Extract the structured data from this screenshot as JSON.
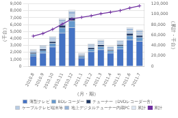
{
  "chart_data": {
    "type": "bar",
    "stacked": true,
    "xlabel": "（月・期）",
    "ylabel": "（千台）",
    "y2label": "（累計・千台）",
    "categories": [
      "2010.8",
      "2010.9",
      "2010.10",
      "2010.11",
      "2010.12",
      "2011.1",
      "2011.2",
      "2011.3",
      "2011.4",
      "2011.5",
      "2011.6",
      "2011.7"
    ],
    "series": [
      {
        "name": "薄型テレビ",
        "color": "#4472C4",
        "values": [
          1500,
          1900,
          2800,
          4800,
          5600,
          1200,
          2100,
          2400,
          1900,
          2500,
          3800,
          3600
        ]
      },
      {
        "name": "BDレコーダー",
        "color": "#6699CC",
        "values": [
          300,
          380,
          500,
          750,
          950,
          220,
          380,
          450,
          330,
          420,
          620,
          580
        ]
      },
      {
        "name": "チューナー（DVDレコーダー含）",
        "color": "#1F3864",
        "values": [
          180,
          230,
          280,
          370,
          460,
          140,
          220,
          270,
          180,
          220,
          320,
          280
        ]
      },
      {
        "name": "ケーブルテレビ端末等",
        "color": "#B8CCE4",
        "values": [
          250,
          300,
          380,
          500,
          580,
          200,
          300,
          370,
          270,
          340,
          470,
          440
        ]
      },
      {
        "name": "地上デジタルチューナー内蔵PC",
        "color": "#95B3D7",
        "values": [
          120,
          150,
          200,
          270,
          300,
          100,
          160,
          200,
          140,
          170,
          240,
          220
        ]
      },
      {
        "name": "累計",
        "color": "#DCE6F1",
        "values": [
          90,
          110,
          150,
          200,
          230,
          80,
          120,
          150,
          100,
          130,
          180,
          160
        ]
      },
      {
        "name": "累計",
        "type": "line",
        "axis": "y2",
        "color": "#7030A0",
        "marker": "cross",
        "values": [
          58000,
          63000,
          71000,
          81000,
          91000,
          94000,
          97000,
          101000,
          104000,
          107000,
          112000,
          116000
        ]
      }
    ],
    "ylim": [
      0,
      9000
    ],
    "yticks": [
      0,
      {
        "value": 1000,
        "label": "1,000"
      },
      {
        "value": 2000,
        "label": "2,000"
      },
      {
        "value": 3000,
        "label": "3,000"
      },
      {
        "value": 4000,
        "label": "4,000"
      },
      {
        "value": 5000,
        "label": "5,000"
      },
      {
        "value": 6000,
        "label": "6,000"
      },
      {
        "value": 7000,
        "label": "7,000"
      },
      {
        "value": 8000,
        "label": "8,000"
      },
      {
        "value": 9000,
        "label": "9,000"
      }
    ],
    "y2lim": [
      0,
      120000
    ],
    "y2ticks": [
      0,
      {
        "value": 20000,
        "label": "20,000"
      },
      {
        "value": 40000,
        "label": "40,000"
      },
      {
        "value": 60000,
        "label": "60,000"
      },
      {
        "value": 80000,
        "label": "80,000"
      },
      {
        "value": 100000,
        "label": "100,000"
      },
      {
        "value": 120000,
        "label": "120,000"
      }
    ],
    "grid": true,
    "legend": "bottom"
  }
}
